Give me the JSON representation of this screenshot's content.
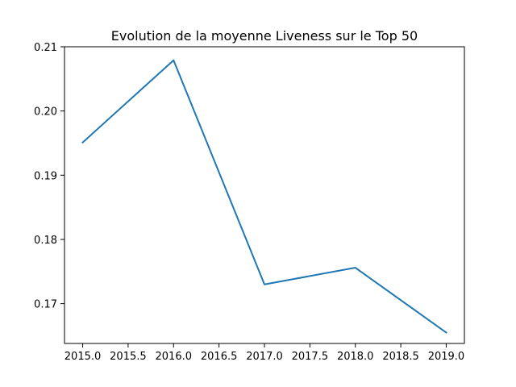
{
  "chart_data": {
    "type": "line",
    "title": "Evolution de la moyenne Liveness sur le Top 50",
    "xlabel": "",
    "ylabel": "",
    "x": [
      2015,
      2016,
      2017,
      2018,
      2019
    ],
    "series": [
      {
        "values": [
          0.1951,
          0.2079,
          0.173,
          0.1756,
          0.1655
        ],
        "color": "#1f77b4"
      }
    ],
    "xlim": [
      2014.8,
      2019.2
    ],
    "ylim": [
      0.1638,
      0.21
    ],
    "xticks": [
      2015.0,
      2015.5,
      2016.0,
      2016.5,
      2017.0,
      2017.5,
      2018.0,
      2018.5,
      2019.0
    ],
    "xtick_labels": [
      "2015.0",
      "2015.5",
      "2016.0",
      "2016.5",
      "2017.0",
      "2017.5",
      "2018.0",
      "2018.5",
      "2019.0"
    ],
    "yticks": [
      0.17,
      0.18,
      0.19,
      0.2,
      0.21
    ],
    "ytick_labels": [
      "0.17",
      "0.18",
      "0.19",
      "0.20",
      "0.21"
    ],
    "grid": false,
    "legend": "none"
  }
}
